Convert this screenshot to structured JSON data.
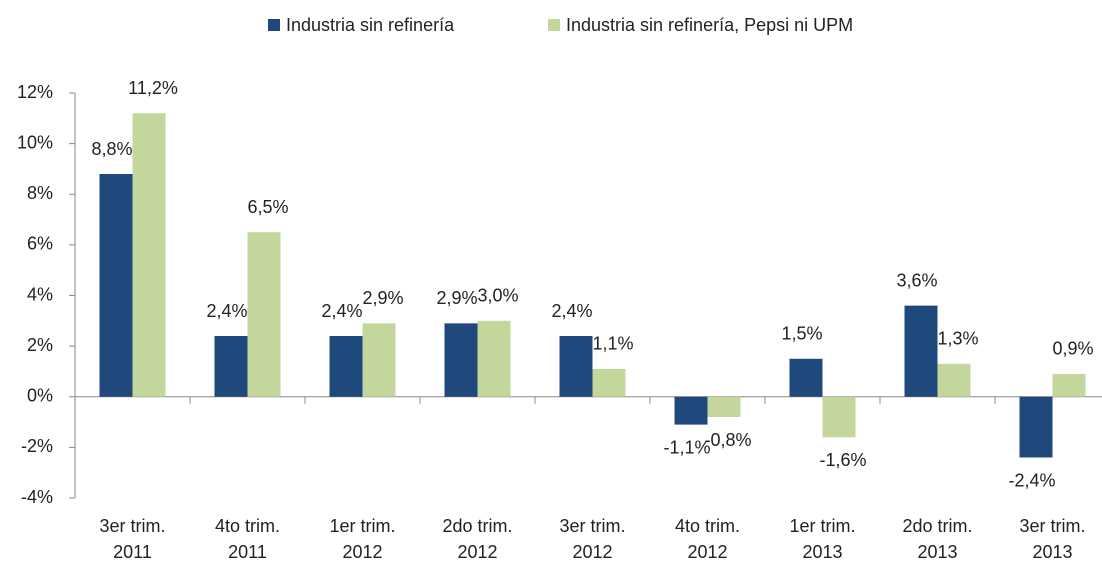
{
  "chart_data": {
    "type": "bar",
    "categories": [
      [
        "3er trim.",
        "2011"
      ],
      [
        "4to trim.",
        "2011"
      ],
      [
        "1er trim.",
        "2012"
      ],
      [
        "2do trim.",
        "2012"
      ],
      [
        "3er trim.",
        "2012"
      ],
      [
        "4to trim.",
        "2012"
      ],
      [
        "1er trim.",
        "2013"
      ],
      [
        "2do trim.",
        "2013"
      ],
      [
        "3er trim.",
        "2013"
      ]
    ],
    "series": [
      {
        "name": "Industria sin refinería",
        "color": "#1f497d",
        "values": [
          8.8,
          2.4,
          2.4,
          2.9,
          2.4,
          -1.1,
          1.5,
          3.6,
          -2.4
        ],
        "value_labels": [
          "8,8%",
          "2,4%",
          "2,4%",
          "2,9%",
          "2,4%",
          "-1,1%",
          "1,5%",
          "3,6%",
          "-2,4%"
        ]
      },
      {
        "name": "Industria sin refinería, Pepsi ni UPM",
        "color": "#c3d69b",
        "values": [
          11.2,
          6.5,
          2.9,
          3.0,
          1.1,
          -0.8,
          -1.6,
          1.3,
          0.9
        ],
        "value_labels": [
          "11,2%",
          "6,5%",
          "2,9%",
          "3,0%",
          "1,1%",
          "-0,8%",
          "-1,6%",
          "1,3%",
          "0,9%"
        ]
      }
    ],
    "ylim": [
      -4,
      12
    ],
    "yticks": [
      {
        "value": -4,
        "label": "-4%"
      },
      {
        "value": -2,
        "label": "-2%"
      },
      {
        "value": 0,
        "label": "0%"
      },
      {
        "value": 2,
        "label": "2%"
      },
      {
        "value": 4,
        "label": "4%"
      },
      {
        "value": 6,
        "label": "6%"
      },
      {
        "value": 8,
        "label": "8%"
      },
      {
        "value": 10,
        "label": "10%"
      },
      {
        "value": 12,
        "label": "12%"
      }
    ],
    "legend": "top",
    "grid": false
  }
}
